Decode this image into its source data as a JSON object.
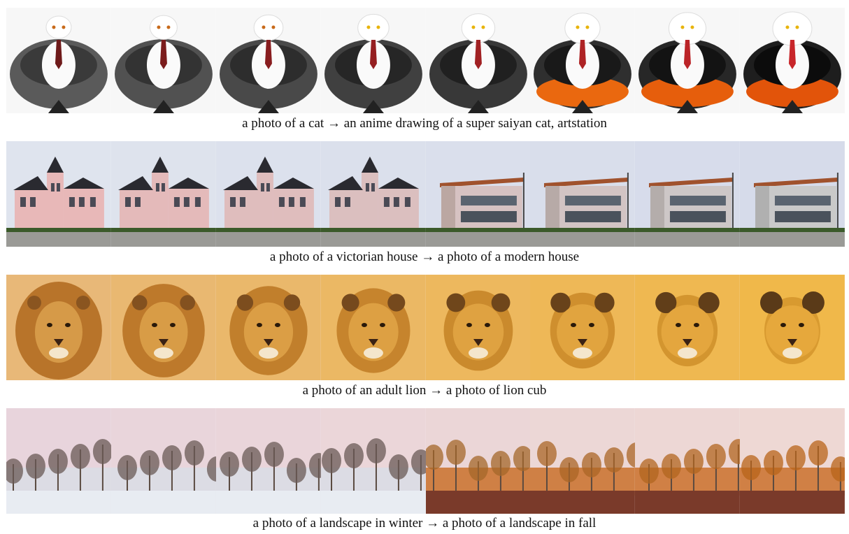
{
  "figure": {
    "rows": [
      {
        "id": "cat",
        "caption": "a photo of a cat → an anime drawing of a super saiyan cat, artstation",
        "frames": 8
      },
      {
        "id": "house",
        "caption": "a photo of a victorian house → a photo of a modern house",
        "frames": 8
      },
      {
        "id": "lion",
        "caption": "a photo of an adult lion → a photo of lion cub",
        "frames": 8
      },
      {
        "id": "landscape",
        "caption": "a photo of a landscape in winter → a photo of a landscape in fall",
        "frames": 8
      }
    ]
  }
}
